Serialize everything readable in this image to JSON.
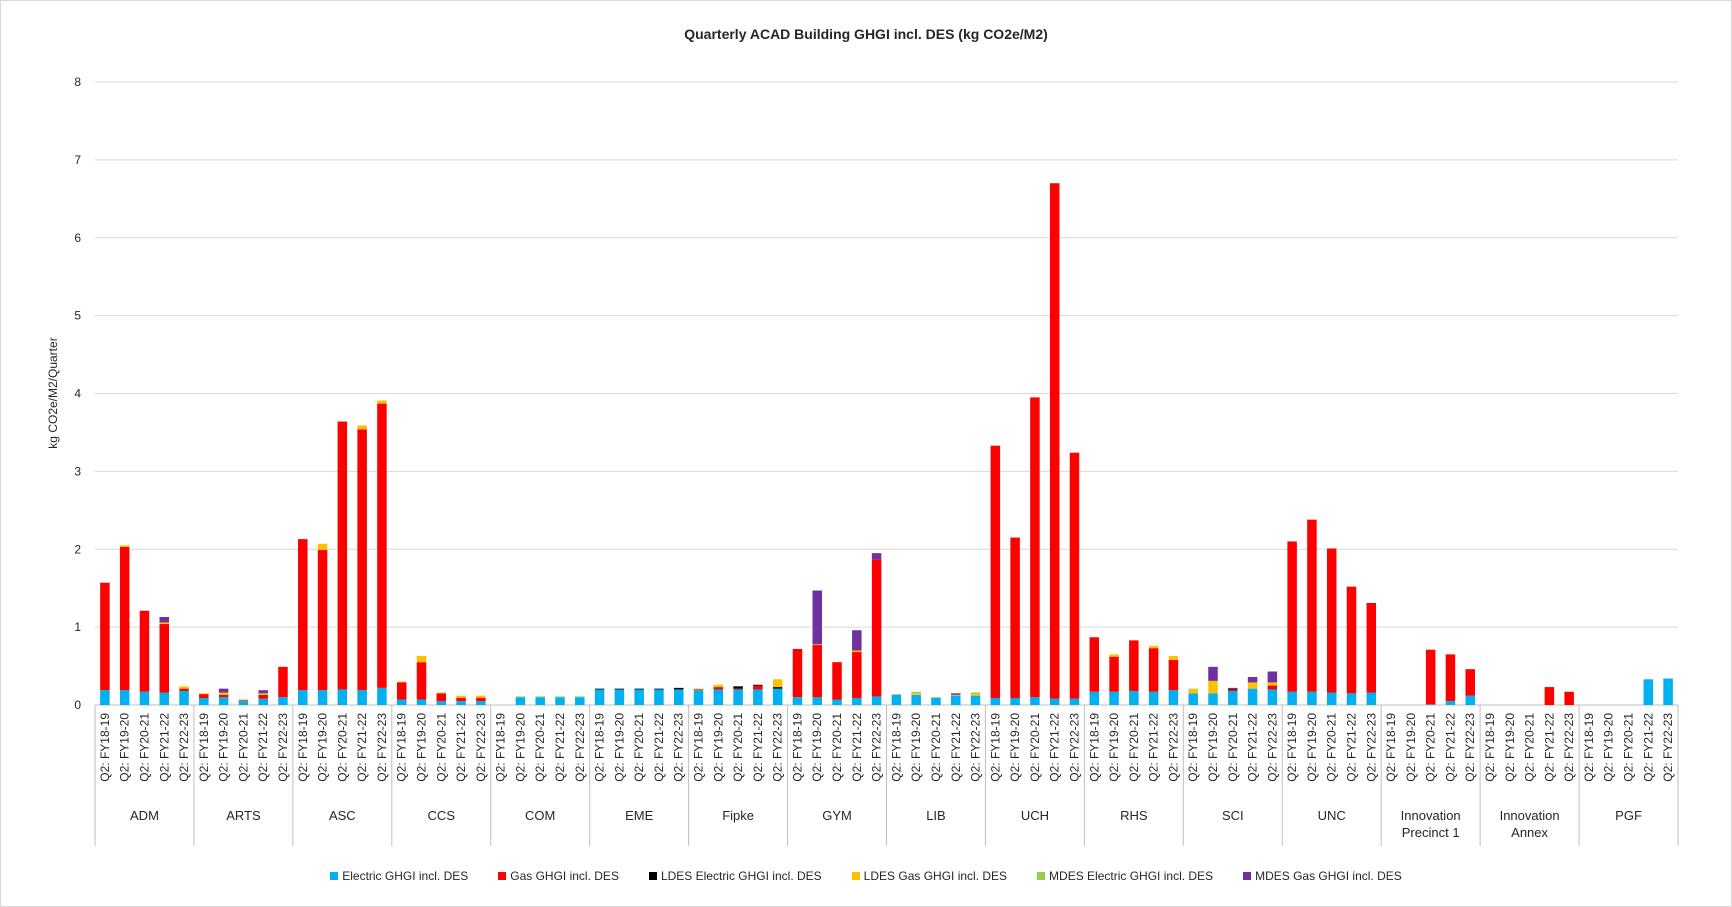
{
  "chart_data": {
    "type": "stacked_bar",
    "title": "Quarterly ACAD Building GHGI incl. DES (kg CO2e/M2)",
    "y_label": "kg CO2e/M2/Quarter",
    "groups": [
      "ADM",
      "ARTS",
      "ASC",
      "CCS",
      "COM",
      "EME",
      "Fipke",
      "GYM",
      "LIB",
      "UCH",
      "RHS",
      "SCI",
      "UNC",
      "Innovation Precinct 1",
      "Innovation Annex",
      "PGF"
    ],
    "categories": [
      "Q2: FY18-19",
      "Q2: FY19-20",
      "Q2: FY20-21",
      "Q2: FY21-22",
      "Q2: FY22-23",
      "Q2: FY18-19",
      "Q2: FY19-20",
      "Q2: FY20-21",
      "Q2: FY21-22",
      "Q2: FY22-23",
      "Q2: FY18-19",
      "Q2: FY19-20",
      "Q2: FY20-21",
      "Q2: FY21-22",
      "Q2: FY22-23",
      "Q2: FY18-19",
      "Q2: FY19-20",
      "Q2: FY20-21",
      "Q2: FY21-22",
      "Q2: FY22-23",
      "Q2: FY18-19",
      "Q2: FY19-20",
      "Q2: FY20-21",
      "Q2: FY21-22",
      "Q2: FY22-23",
      "Q2: FY18-19",
      "Q2: FY19-20",
      "Q2: FY20-21",
      "Q2: FY21-22",
      "Q2: FY22-23",
      "Q2: FY18-19",
      "Q2: FY19-20",
      "Q2: FY20-21",
      "Q2: FY21-22",
      "Q2: FY22-23",
      "Q2: FY18-19",
      "Q2: FY19-20",
      "Q2: FY20-21",
      "Q2: FY21-22",
      "Q2: FY22-23",
      "Q2: FY18-19",
      "Q2: FY19-20",
      "Q2: FY20-21",
      "Q2: FY21-22",
      "Q2: FY22-23",
      "Q2: FY18-19",
      "Q2: FY19-20",
      "Q2: FY20-21",
      "Q2: FY21-22",
      "Q2: FY22-23",
      "Q2: FY18-19",
      "Q2: FY19-20",
      "Q2: FY20-21",
      "Q2: FY21-22",
      "Q2: FY22-23",
      "Q2: FY18-19",
      "Q2: FY19-20",
      "Q2: FY20-21",
      "Q2: FY21-22",
      "Q2: FY22-23",
      "Q2: FY18-19",
      "Q2: FY19-20",
      "Q2: FY20-21",
      "Q2: FY21-22",
      "Q2: FY22-23",
      "Q2: FY18-19",
      "Q2: FY19-20",
      "Q2: FY20-21",
      "Q2: FY21-22",
      "Q2: FY22-23",
      "Q2: FY18-19",
      "Q2: FY19-20",
      "Q2: FY20-21",
      "Q2: FY21-22",
      "Q2: FY22-23",
      "Q2: FY18-19",
      "Q2: FY19-20",
      "Q2: FY20-21",
      "Q2: FY21-22",
      "Q2: FY22-23"
    ],
    "series": [
      {
        "name": "Electric GHGI incl. DES",
        "color": "#00b0f0",
        "values": [
          0.19,
          0.19,
          0.17,
          0.16,
          0.18,
          0.09,
          0.1,
          0.05,
          0.08,
          0.1,
          0.19,
          0.19,
          0.2,
          0.19,
          0.22,
          0.07,
          0.07,
          0.05,
          0.05,
          0.05,
          0,
          0.1,
          0.1,
          0.1,
          0.1,
          0.2,
          0.2,
          0.2,
          0.2,
          0.2,
          0.19,
          0.2,
          0.2,
          0.2,
          0.21,
          0.1,
          0.1,
          0.07,
          0.09,
          0.11,
          0.13,
          0.13,
          0.09,
          0.12,
          0.12,
          0.09,
          0.09,
          0.1,
          0.08,
          0.08,
          0.17,
          0.17,
          0.18,
          0.17,
          0.19,
          0.15,
          0.15,
          0.18,
          0.21,
          0.2,
          0.17,
          0.17,
          0.16,
          0.15,
          0.16,
          0,
          0,
          0.01,
          0.05,
          0.12,
          0,
          0,
          0,
          0,
          0,
          0,
          0,
          0,
          0.33,
          0.34
        ]
      },
      {
        "name": "Gas GHGI incl. DES",
        "color": "#ff0000",
        "values": [
          1.38,
          1.84,
          1.04,
          0.88,
          0.03,
          0.05,
          0.03,
          0.01,
          0.05,
          0.39,
          1.94,
          1.8,
          3.44,
          3.35,
          3.65,
          0.22,
          0.48,
          0.1,
          0.04,
          0.04,
          0,
          0,
          0,
          0,
          0,
          0,
          0,
          0,
          0,
          0,
          0.01,
          0.03,
          0.01,
          0.05,
          0,
          0.62,
          0.67,
          0.48,
          0.59,
          1.76,
          0,
          0,
          0,
          0,
          0,
          3.24,
          2.06,
          3.85,
          6.62,
          3.16,
          0.7,
          0.45,
          0.65,
          0.56,
          0.39,
          0,
          0,
          0.02,
          0,
          0.05,
          1.93,
          2.21,
          1.85,
          1.37,
          1.15,
          0,
          0,
          0.7,
          0.6,
          0.34,
          0,
          0,
          0,
          0.23,
          0.17,
          0,
          0,
          0,
          0,
          0
        ]
      },
      {
        "name": "LDES Electric GHGI incl. DES",
        "color": "#000000",
        "values": [
          0,
          0,
          0,
          0,
          0,
          0,
          0,
          0,
          0,
          0,
          0,
          0,
          0,
          0,
          0,
          0,
          0,
          0,
          0,
          0,
          0,
          0,
          0,
          0,
          0,
          0.01,
          0.01,
          0.01,
          0.01,
          0.02,
          0,
          0,
          0.03,
          0.01,
          0.02,
          0,
          0,
          0,
          0,
          0,
          0,
          0,
          0,
          0,
          0,
          0,
          0,
          0,
          0,
          0,
          0,
          0,
          0,
          0,
          0,
          0,
          0,
          0.01,
          0,
          0,
          0,
          0,
          0,
          0,
          0,
          0,
          0,
          0,
          0,
          0,
          0,
          0,
          0,
          0,
          0,
          0,
          0,
          0,
          0,
          0
        ]
      },
      {
        "name": "LDES Gas GHGI incl. DES",
        "color": "#ffc000",
        "values": [
          0,
          0.02,
          0,
          0.02,
          0.03,
          0.01,
          0.03,
          0,
          0.02,
          0,
          0,
          0.08,
          0,
          0.05,
          0.04,
          0.01,
          0.08,
          0.01,
          0.03,
          0.03,
          0,
          0,
          0,
          0,
          0,
          0,
          0,
          0,
          0,
          0,
          0.01,
          0.03,
          0,
          0,
          0.1,
          0,
          0.01,
          0,
          0.02,
          0,
          0,
          0.02,
          0,
          0.01,
          0.02,
          0,
          0,
          0,
          0,
          0,
          0,
          0.03,
          0,
          0.03,
          0.05,
          0.05,
          0.16,
          0,
          0.08,
          0.04,
          0,
          0,
          0,
          0,
          0,
          0,
          0,
          0,
          0,
          0,
          0,
          0,
          0,
          0,
          0,
          0,
          0,
          0,
          0,
          0
        ]
      },
      {
        "name": "MDES Electric GHGI incl. DES",
        "color": "#92d050",
        "values": [
          0,
          0,
          0,
          0,
          0,
          0,
          0,
          0.01,
          0,
          0,
          0,
          0,
          0,
          0,
          0,
          0,
          0,
          0,
          0,
          0,
          0,
          0.01,
          0.01,
          0.01,
          0.01,
          0,
          0,
          0,
          0,
          0,
          0,
          0,
          0,
          0,
          0,
          0,
          0,
          0,
          0,
          0,
          0.01,
          0.02,
          0.01,
          0,
          0.02,
          0,
          0,
          0,
          0,
          0,
          0,
          0,
          0,
          0,
          0,
          0.01,
          0,
          0,
          0,
          0,
          0,
          0,
          0,
          0,
          0,
          0,
          0,
          0,
          0,
          0,
          0,
          0,
          0,
          0,
          0,
          0,
          0,
          0,
          0,
          0
        ]
      },
      {
        "name": "MDES Gas GHGI incl. DES",
        "color": "#7030a0",
        "values": [
          0,
          0,
          0,
          0.07,
          0,
          0,
          0.05,
          0,
          0.04,
          0,
          0,
          0,
          0,
          0,
          0,
          0,
          0,
          0,
          0,
          0,
          0,
          0,
          0,
          0,
          0,
          0,
          0,
          0,
          0,
          0,
          0,
          0,
          0,
          0,
          0,
          0,
          0.69,
          0,
          0.26,
          0.08,
          0,
          0,
          0,
          0.02,
          0,
          0,
          0,
          0,
          0,
          0,
          0,
          0,
          0,
          0,
          0,
          0,
          0.18,
          0.01,
          0.07,
          0.14,
          0,
          0,
          0,
          0,
          0,
          0,
          0,
          0,
          0,
          0,
          0,
          0,
          0,
          0,
          0,
          0,
          0,
          0,
          0,
          0
        ]
      }
    ],
    "ylim": [
      0,
      8
    ],
    "yticks": [
      0,
      1,
      2,
      3,
      4,
      5,
      6,
      7,
      8
    ],
    "grid": true,
    "legend": "bottom"
  }
}
